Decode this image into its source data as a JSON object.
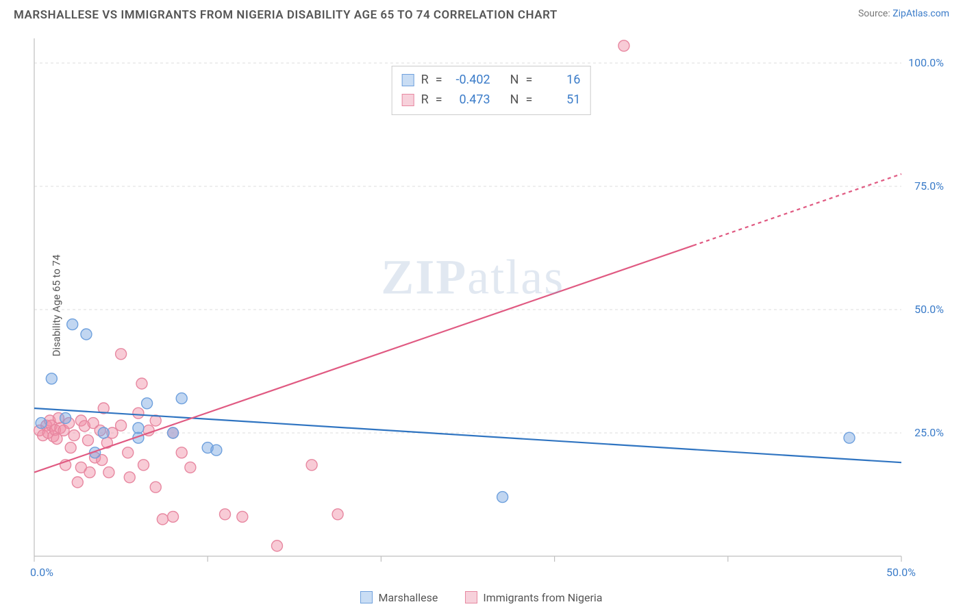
{
  "title": "MARSHALLESE VS IMMIGRANTS FROM NIGERIA DISABILITY AGE 65 TO 74 CORRELATION CHART",
  "source_label": "Source: ",
  "source_name": "ZipAtlas.com",
  "y_axis_label": "Disability Age 65 to 74",
  "watermark_zip": "ZIP",
  "watermark_atlas": "atlas",
  "chart": {
    "type": "scatter-with-regression",
    "background_color": "#ffffff",
    "grid_color": "#dcdcdc",
    "grid_dash": "4,4",
    "xlim": [
      0,
      50
    ],
    "ylim": [
      0,
      105
    ],
    "y_gridlines": [
      25,
      50,
      75,
      100
    ],
    "y_tick_labels": [
      "25.0%",
      "50.0%",
      "75.0%",
      "100.0%"
    ],
    "y_tick_color": "#3b7cc9",
    "x_ticks": [
      0,
      10,
      20,
      30,
      40,
      50
    ],
    "x_tick_labels_shown": {
      "0": "0.0%",
      "50": "50.0%"
    },
    "x_tick_color": "#3b7cc9",
    "axis_line_color": "#bfbfbf",
    "tick_fontsize": 16,
    "series": {
      "marshallese": {
        "label": "Marshallese",
        "fill": "rgba(118,165,224,0.45)",
        "stroke": "#6ea0dd",
        "line_color": "#2f74c1",
        "line_width": 2.2,
        "swatch_fill": "#c9ddf4",
        "swatch_border": "#6ea0dd",
        "R": "-0.402",
        "N": "16",
        "points": [
          [
            0.4,
            27
          ],
          [
            1,
            36
          ],
          [
            1.8,
            28
          ],
          [
            2.2,
            47
          ],
          [
            3,
            45
          ],
          [
            3.5,
            21
          ],
          [
            4,
            25
          ],
          [
            6,
            24
          ],
          [
            6,
            26
          ],
          [
            6.5,
            31
          ],
          [
            8,
            25
          ],
          [
            8.5,
            32
          ],
          [
            10,
            22
          ],
          [
            10.5,
            21.5
          ],
          [
            27,
            12
          ],
          [
            47,
            24
          ]
        ],
        "regression": {
          "x1": 0,
          "y1": 30,
          "x2": 50,
          "y2": 19
        }
      },
      "nigeria": {
        "label": "Immigrants from Nigeria",
        "fill": "rgba(240,140,165,0.45)",
        "stroke": "#e787a0",
        "line_color": "#e05a82",
        "line_width": 2.2,
        "swatch_fill": "#f7d1db",
        "swatch_border": "#e787a0",
        "R": "0.473",
        "N": "51",
        "points": [
          [
            0.3,
            25.5
          ],
          [
            0.5,
            24.5
          ],
          [
            0.7,
            26.5
          ],
          [
            0.8,
            25
          ],
          [
            0.9,
            27.5
          ],
          [
            1.0,
            26.5
          ],
          [
            1.1,
            24.3
          ],
          [
            1.2,
            25.6
          ],
          [
            1.3,
            23.8
          ],
          [
            1.5,
            26
          ],
          [
            1.4,
            28
          ],
          [
            1.7,
            25.5
          ],
          [
            1.8,
            18.5
          ],
          [
            2.0,
            27
          ],
          [
            2.1,
            22
          ],
          [
            2.3,
            24.5
          ],
          [
            2.5,
            15
          ],
          [
            2.7,
            27.5
          ],
          [
            2.7,
            18
          ],
          [
            2.9,
            26.4
          ],
          [
            3.1,
            23.5
          ],
          [
            3.2,
            17
          ],
          [
            3.4,
            27
          ],
          [
            3.5,
            20
          ],
          [
            3.8,
            25.5
          ],
          [
            3.9,
            19.5
          ],
          [
            4.0,
            30
          ],
          [
            4.2,
            23
          ],
          [
            4.3,
            17
          ],
          [
            4.5,
            25
          ],
          [
            5,
            41
          ],
          [
            5,
            26.5
          ],
          [
            5.4,
            21
          ],
          [
            5.5,
            16
          ],
          [
            6.0,
            29
          ],
          [
            6.2,
            35
          ],
          [
            6.3,
            18.5
          ],
          [
            6.6,
            25.5
          ],
          [
            7,
            27.5
          ],
          [
            7,
            14
          ],
          [
            7.4,
            7.5
          ],
          [
            8,
            25
          ],
          [
            8.5,
            21
          ],
          [
            8,
            8
          ],
          [
            9,
            18
          ],
          [
            11,
            8.5
          ],
          [
            12,
            8
          ],
          [
            14,
            2.1
          ],
          [
            16,
            18.5
          ],
          [
            17.5,
            8.5
          ],
          [
            34,
            103.5
          ]
        ],
        "regression": {
          "x1": 0,
          "y1": 17,
          "x2": 38,
          "y2": 63
        },
        "regression_dash": {
          "x1": 38,
          "y1": 63,
          "x2": 50,
          "y2": 77.5
        }
      }
    },
    "marker_radius": 8,
    "marker_stroke_width": 1.4
  },
  "corr_box": {
    "R_label": "R",
    "N_label": "N",
    "eq": "="
  },
  "legend": {
    "series_order": [
      "marshallese",
      "nigeria"
    ]
  }
}
